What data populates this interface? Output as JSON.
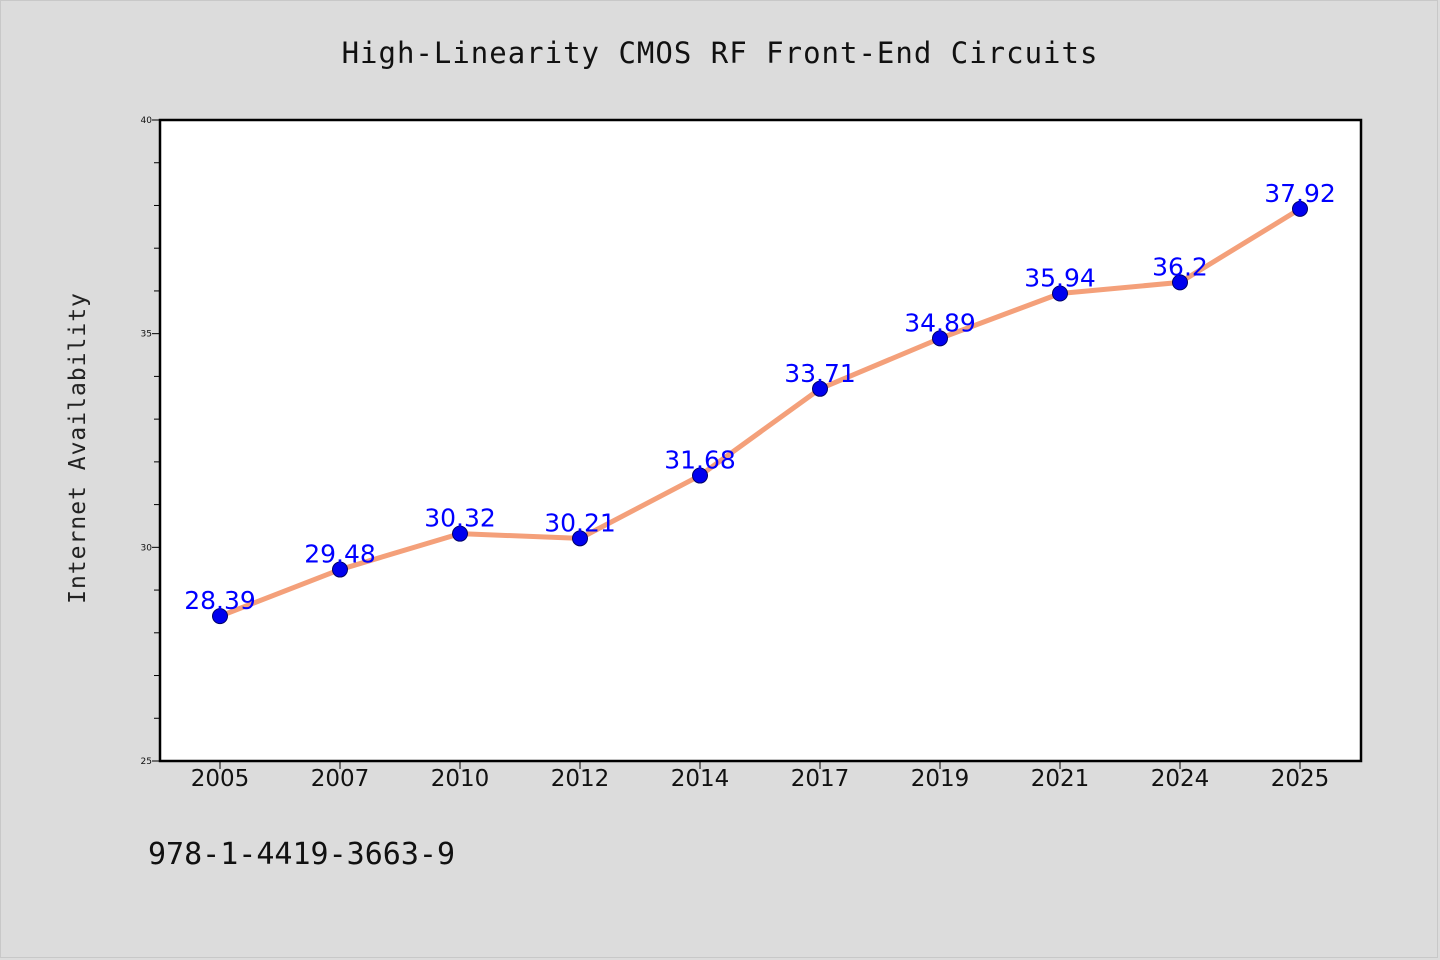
{
  "footer_text": "978-1-4419-3663-9",
  "colors": {
    "background": "#dcdcdc",
    "plot_background": "#ffffff",
    "line": "#f4a07a",
    "marker": "#0000ee",
    "data_label": "#0000ff"
  },
  "chart_data": {
    "type": "line",
    "title": "High-Linearity CMOS RF Front-End Circuits",
    "xlabel": "",
    "ylabel": "Internet Availability",
    "categories": [
      "2005",
      "2007",
      "2010",
      "2012",
      "2014",
      "2017",
      "2019",
      "2021",
      "2024",
      "2025"
    ],
    "values": [
      28.39,
      29.48,
      30.32,
      30.21,
      31.68,
      33.71,
      34.89,
      35.94,
      36.2,
      37.92
    ],
    "data_labels": [
      "28.39",
      "29.48",
      "30.32",
      "30.21",
      "31.68",
      "33.71",
      "34.89",
      "35.94",
      "36.2",
      "37.92"
    ],
    "ylim": [
      25,
      40
    ],
    "yticks": [
      "25",
      "30",
      "35",
      "40"
    ],
    "grid": false,
    "legend": "none"
  }
}
